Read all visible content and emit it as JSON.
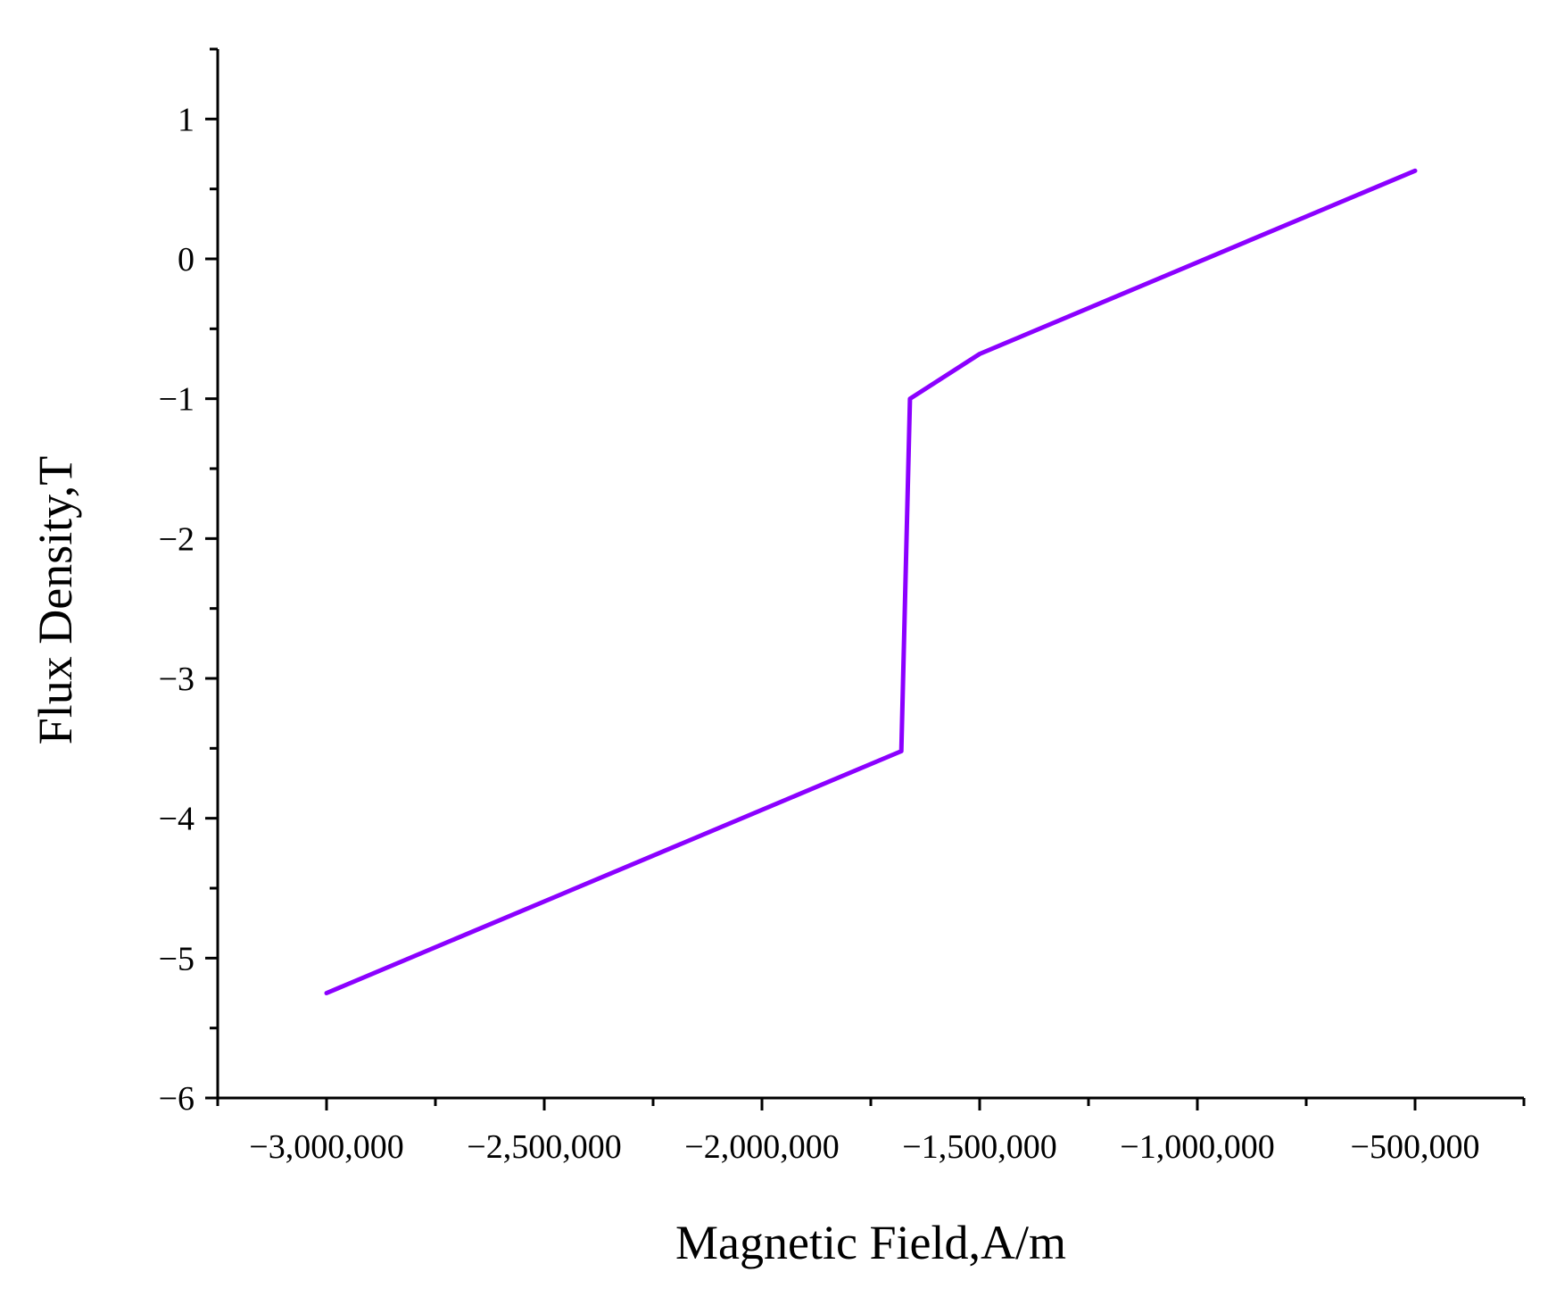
{
  "chart_data": {
    "type": "line",
    "title": "",
    "xlabel": "Magnetic Field,A/m",
    "ylabel": "Flux Density,T",
    "xlim": [
      -3250000,
      -250000
    ],
    "ylim": [
      -6,
      1.5
    ],
    "x_ticks": [
      -3000000,
      -2500000,
      -2000000,
      -1500000,
      -1000000,
      -500000
    ],
    "x_tick_labels": [
      "−3,000,000",
      "−2,500,000",
      "−2,000,000",
      "−1,500,000",
      "−1,000,000",
      "−500,000"
    ],
    "y_ticks": [
      1,
      0,
      -1,
      -2,
      -3,
      -4,
      -5,
      -6
    ],
    "y_tick_labels": [
      "1",
      "0",
      "−1",
      "−2",
      "−3",
      "−4",
      "−5",
      "−6"
    ],
    "grid": false,
    "series": [
      {
        "color": "#8b00ff",
        "x": [
          -3000000,
          -1680000,
          -1660000,
          -1500000,
          -500000
        ],
        "y": [
          -5.25,
          -3.52,
          -1.0,
          -0.68,
          0.63
        ]
      }
    ]
  }
}
